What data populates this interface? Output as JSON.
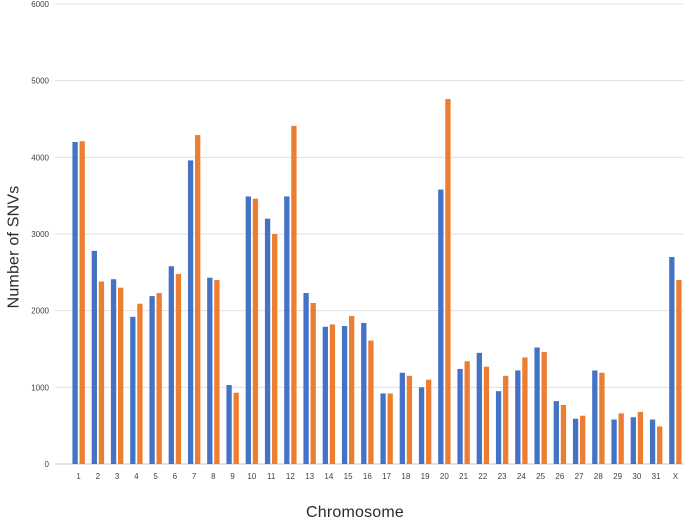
{
  "chart_data": {
    "type": "bar",
    "title": "",
    "xlabel": "Chromosome",
    "ylabel": "Number of SNVs",
    "categories": [
      "1",
      "2",
      "3",
      "4",
      "5",
      "6",
      "7",
      "8",
      "9",
      "10",
      "11",
      "12",
      "13",
      "14",
      "15",
      "16",
      "17",
      "18",
      "19",
      "20",
      "21",
      "22",
      "23",
      "24",
      "25",
      "26",
      "27",
      "28",
      "29",
      "30",
      "31",
      "X"
    ],
    "series": [
      {
        "name": "blue-series",
        "color": "#4472C4",
        "values": [
          4200,
          2780,
          2410,
          1920,
          2190,
          2580,
          3960,
          2430,
          1030,
          3490,
          3200,
          3490,
          2230,
          1790,
          1800,
          1840,
          920,
          1190,
          1000,
          3580,
          1240,
          1450,
          950,
          1220,
          1520,
          820,
          590,
          1220,
          580,
          610,
          580,
          2700
        ]
      },
      {
        "name": "orange-series",
        "color": "#ED7D31",
        "values": [
          4210,
          2380,
          2300,
          2090,
          2230,
          2480,
          4290,
          2400,
          930,
          3460,
          3000,
          4410,
          2100,
          1820,
          1930,
          1610,
          920,
          1150,
          1100,
          4760,
          1340,
          1270,
          1150,
          1390,
          1460,
          770,
          630,
          1190,
          660,
          680,
          490,
          2400
        ]
      }
    ],
    "ylim": [
      0,
      6000
    ],
    "ytick_interval": 1000,
    "yticks": [
      "0",
      "1000",
      "2000",
      "3000",
      "4000",
      "5000",
      "6000"
    ],
    "grid": "horizontal",
    "legend": "none",
    "colors": {
      "gridline": "#e0e0e0",
      "axis_line": "#c6c6c6",
      "tick_label": "#3f3f3f",
      "axis_title": "#2b2b2b",
      "background": "#ffffff"
    }
  }
}
